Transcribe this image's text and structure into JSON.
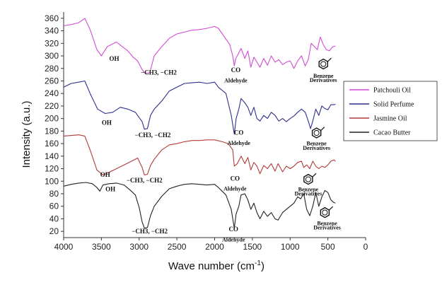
{
  "chart_data": {
    "type": "line",
    "xlabel": "Wave number (cm",
    "xlabel_sup": "-1",
    "xlabel_close": ")",
    "ylabel": "Intensity (a.u.)",
    "xlim": [
      4000,
      0
    ],
    "ylim": [
      10,
      370
    ],
    "x_ticks": [
      "4000",
      "3500",
      "3000",
      "2500",
      "2000",
      "1500",
      "1000",
      "500",
      "0"
    ],
    "y_ticks": [
      "20",
      "40",
      "60",
      "80",
      "100",
      "120",
      "140",
      "160",
      "180",
      "200",
      "220",
      "240",
      "260",
      "280",
      "300",
      "320",
      "340",
      "360"
    ],
    "legend_position": "right",
    "series": [
      {
        "name": "Patchouli Oil",
        "color": "#d24bd6",
        "points": [
          [
            4000,
            348
          ],
          [
            3900,
            350
          ],
          [
            3800,
            353
          ],
          [
            3720,
            360
          ],
          [
            3650,
            342
          ],
          [
            3560,
            310
          ],
          [
            3500,
            300
          ],
          [
            3420,
            315
          ],
          [
            3300,
            322
          ],
          [
            3150,
            308
          ],
          [
            3080,
            298
          ],
          [
            3020,
            292
          ],
          [
            2960,
            278
          ],
          [
            2920,
            272
          ],
          [
            2860,
            273
          ],
          [
            2800,
            300
          ],
          [
            2700,
            315
          ],
          [
            2600,
            328
          ],
          [
            2500,
            335
          ],
          [
            2400,
            338
          ],
          [
            2300,
            341
          ],
          [
            2200,
            342
          ],
          [
            2100,
            344
          ],
          [
            2000,
            347
          ],
          [
            1950,
            344
          ],
          [
            1880,
            332
          ],
          [
            1800,
            318
          ],
          [
            1760,
            300
          ],
          [
            1740,
            284
          ],
          [
            1720,
            296
          ],
          [
            1700,
            300
          ],
          [
            1650,
            312
          ],
          [
            1600,
            296
          ],
          [
            1560,
            308
          ],
          [
            1520,
            282
          ],
          [
            1480,
            298
          ],
          [
            1440,
            290
          ],
          [
            1400,
            282
          ],
          [
            1350,
            296
          ],
          [
            1300,
            285
          ],
          [
            1250,
            300
          ],
          [
            1200,
            290
          ],
          [
            1150,
            294
          ],
          [
            1100,
            286
          ],
          [
            1050,
            290
          ],
          [
            1000,
            292
          ],
          [
            950,
            280
          ],
          [
            900,
            292
          ],
          [
            850,
            300
          ],
          [
            800,
            284
          ],
          [
            760,
            294
          ],
          [
            720,
            320
          ],
          [
            680,
            315
          ],
          [
            640,
            310
          ],
          [
            600,
            330
          ],
          [
            560,
            318
          ],
          [
            520,
            310
          ],
          [
            480,
            308
          ],
          [
            440,
            314
          ],
          [
            400,
            316
          ]
        ]
      },
      {
        "name": "Solid Perfume",
        "color": "#2f2f8f",
        "points": [
          [
            4000,
            250
          ],
          [
            3900,
            256
          ],
          [
            3800,
            258
          ],
          [
            3720,
            260
          ],
          [
            3650,
            240
          ],
          [
            3550,
            215
          ],
          [
            3450,
            208
          ],
          [
            3350,
            210
          ],
          [
            3250,
            218
          ],
          [
            3150,
            215
          ],
          [
            3050,
            210
          ],
          [
            2960,
            195
          ],
          [
            2930,
            183
          ],
          [
            2890,
            184
          ],
          [
            2850,
            205
          ],
          [
            2800,
            215
          ],
          [
            2700,
            228
          ],
          [
            2600,
            244
          ],
          [
            2500,
            250
          ],
          [
            2400,
            256
          ],
          [
            2300,
            257
          ],
          [
            2200,
            258
          ],
          [
            2100,
            256
          ],
          [
            2000,
            258
          ],
          [
            1950,
            250
          ],
          [
            1850,
            240
          ],
          [
            1780,
            205
          ],
          [
            1740,
            175
          ],
          [
            1715,
            200
          ],
          [
            1680,
            215
          ],
          [
            1650,
            232
          ],
          [
            1600,
            225
          ],
          [
            1560,
            218
          ],
          [
            1520,
            205
          ],
          [
            1480,
            218
          ],
          [
            1440,
            200
          ],
          [
            1400,
            196
          ],
          [
            1350,
            205
          ],
          [
            1300,
            200
          ],
          [
            1250,
            210
          ],
          [
            1200,
            205
          ],
          [
            1150,
            196
          ],
          [
            1100,
            200
          ],
          [
            1050,
            195
          ],
          [
            1000,
            200
          ],
          [
            950,
            204
          ],
          [
            900,
            210
          ],
          [
            850,
            215
          ],
          [
            800,
            210
          ],
          [
            760,
            196
          ],
          [
            730,
            184
          ],
          [
            700,
            196
          ],
          [
            660,
            215
          ],
          [
            620,
            205
          ],
          [
            580,
            220
          ],
          [
            540,
            216
          ],
          [
            500,
            214
          ],
          [
            460,
            222
          ],
          [
            420,
            222
          ],
          [
            400,
            223
          ]
        ]
      },
      {
        "name": "Jasmine Oil",
        "color": "#b23a3a",
        "points": [
          [
            4000,
            172
          ],
          [
            3900,
            173
          ],
          [
            3800,
            174
          ],
          [
            3720,
            172
          ],
          [
            3650,
            150
          ],
          [
            3560,
            118
          ],
          [
            3480,
            110
          ],
          [
            3400,
            114
          ],
          [
            3300,
            120
          ],
          [
            3200,
            126
          ],
          [
            3100,
            132
          ],
          [
            3020,
            137
          ],
          [
            2960,
            122
          ],
          [
            2930,
            110
          ],
          [
            2890,
            111
          ],
          [
            2850,
            125
          ],
          [
            2800,
            135
          ],
          [
            2700,
            150
          ],
          [
            2600,
            158
          ],
          [
            2500,
            160
          ],
          [
            2400,
            163
          ],
          [
            2300,
            165
          ],
          [
            2200,
            165
          ],
          [
            2100,
            166
          ],
          [
            2000,
            166
          ],
          [
            1900,
            163
          ],
          [
            1820,
            160
          ],
          [
            1760,
            150
          ],
          [
            1740,
            124
          ],
          [
            1700,
            128
          ],
          [
            1650,
            140
          ],
          [
            1600,
            128
          ],
          [
            1560,
            138
          ],
          [
            1520,
            118
          ],
          [
            1480,
            130
          ],
          [
            1440,
            124
          ],
          [
            1400,
            112
          ],
          [
            1350,
            125
          ],
          [
            1300,
            120
          ],
          [
            1250,
            128
          ],
          [
            1200,
            116
          ],
          [
            1160,
            128
          ],
          [
            1100,
            115
          ],
          [
            1050,
            124
          ],
          [
            1000,
            120
          ],
          [
            950,
            124
          ],
          [
            900,
            130
          ],
          [
            850,
            132
          ],
          [
            820,
            122
          ],
          [
            780,
            126
          ],
          [
            740,
            120
          ],
          [
            700,
            132
          ],
          [
            660,
            124
          ],
          [
            620,
            120
          ],
          [
            580,
            124
          ],
          [
            540,
            122
          ],
          [
            500,
            126
          ],
          [
            460,
            132
          ],
          [
            420,
            134
          ],
          [
            400,
            132
          ]
        ]
      },
      {
        "name": "Cacao Butter",
        "color": "#222222",
        "points": [
          [
            4000,
            92
          ],
          [
            3900,
            95
          ],
          [
            3800,
            97
          ],
          [
            3700,
            98
          ],
          [
            3620,
            96
          ],
          [
            3560,
            90
          ],
          [
            3520,
            84
          ],
          [
            3480,
            94
          ],
          [
            3400,
            96
          ],
          [
            3300,
            97
          ],
          [
            3200,
            94
          ],
          [
            3120,
            86
          ],
          [
            3050,
            78
          ],
          [
            3000,
            58
          ],
          [
            2960,
            35
          ],
          [
            2930,
            25
          ],
          [
            2890,
            26
          ],
          [
            2850,
            45
          ],
          [
            2800,
            60
          ],
          [
            2700,
            76
          ],
          [
            2600,
            88
          ],
          [
            2500,
            92
          ],
          [
            2400,
            95
          ],
          [
            2300,
            96
          ],
          [
            2200,
            95
          ],
          [
            2100,
            94
          ],
          [
            2000,
            95
          ],
          [
            1950,
            90
          ],
          [
            1850,
            78
          ],
          [
            1780,
            55
          ],
          [
            1740,
            25
          ],
          [
            1715,
            48
          ],
          [
            1680,
            60
          ],
          [
            1650,
            78
          ],
          [
            1600,
            80
          ],
          [
            1560,
            70
          ],
          [
            1520,
            55
          ],
          [
            1480,
            65
          ],
          [
            1440,
            50
          ],
          [
            1400,
            40
          ],
          [
            1350,
            52
          ],
          [
            1300,
            44
          ],
          [
            1250,
            50
          ],
          [
            1200,
            40
          ],
          [
            1160,
            38
          ],
          [
            1100,
            50
          ],
          [
            1050,
            55
          ],
          [
            1000,
            60
          ],
          [
            950,
            65
          ],
          [
            900,
            75
          ],
          [
            860,
            72
          ],
          [
            820,
            80
          ],
          [
            780,
            55
          ],
          [
            740,
            45
          ],
          [
            700,
            60
          ],
          [
            660,
            82
          ],
          [
            620,
            60
          ],
          [
            580,
            75
          ],
          [
            540,
            85
          ],
          [
            500,
            82
          ],
          [
            460,
            70
          ],
          [
            420,
            66
          ],
          [
            400,
            65
          ]
        ]
      }
    ],
    "annotations": {
      "patchouli": [
        "OH",
        "−CH3, −CH2",
        "CO",
        "Aldehyde",
        "Benzene",
        "Derivatives"
      ],
      "solid": [
        "OH",
        "−CH3, −CH2",
        "CO",
        "Aldehyde",
        "Benzene",
        "Derivatives"
      ],
      "jasmine": [
        "OH",
        "−CH3, −CH2",
        "CO",
        "Aldehyde",
        "Benzene",
        "Derivatives"
      ],
      "cacao": [
        "OH",
        "−CH3, −CH2",
        "CO",
        "Aldehyde",
        "Benzene",
        "Derivatives"
      ]
    }
  }
}
